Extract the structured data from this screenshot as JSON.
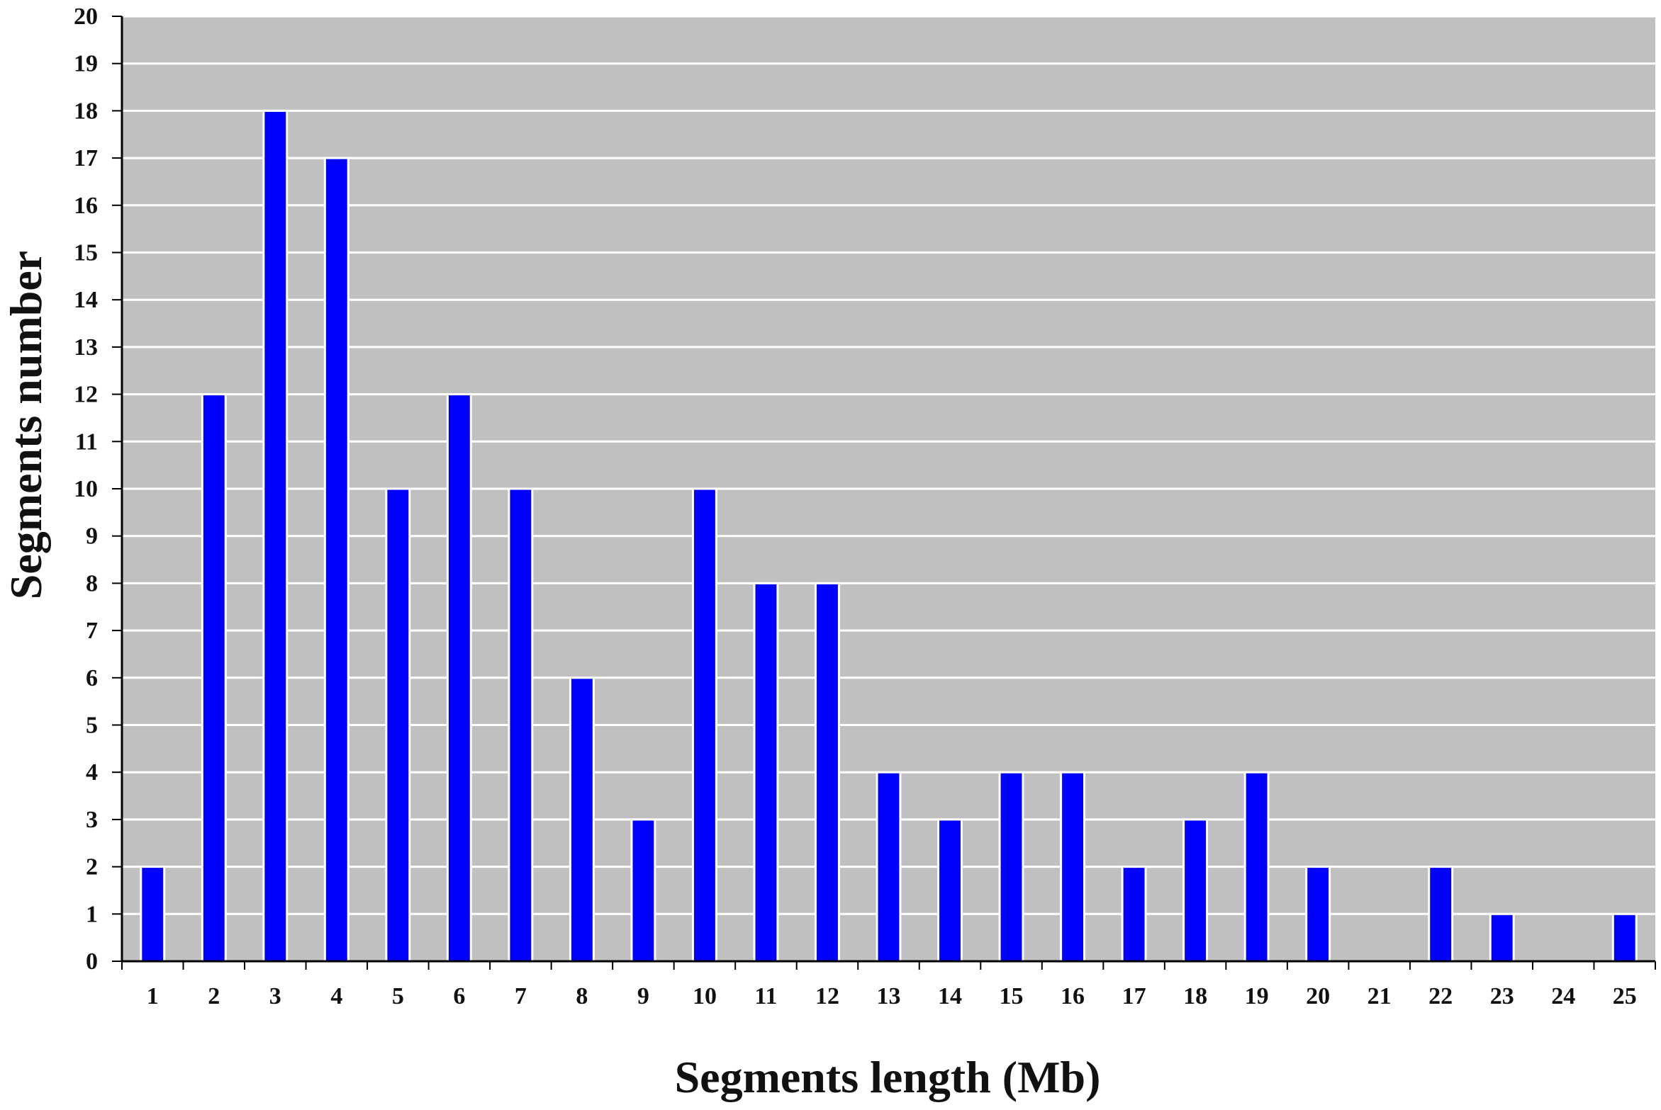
{
  "chart_data": {
    "type": "bar",
    "title": "",
    "xlabel": "Segments length (Mb)",
    "ylabel": "Segments number",
    "categories": [
      "1",
      "2",
      "3",
      "4",
      "5",
      "6",
      "7",
      "8",
      "9",
      "10",
      "11",
      "12",
      "13",
      "14",
      "15",
      "16",
      "17",
      "18",
      "19",
      "20",
      "21",
      "22",
      "23",
      "24",
      "25"
    ],
    "values": [
      2,
      12,
      18,
      17,
      10,
      12,
      10,
      6,
      3,
      10,
      8,
      8,
      4,
      3,
      4,
      4,
      2,
      3,
      4,
      2,
      0,
      2,
      1,
      0,
      1
    ],
    "ylim": [
      0,
      20
    ],
    "yticks": [
      0,
      1,
      2,
      3,
      4,
      5,
      6,
      7,
      8,
      9,
      10,
      11,
      12,
      13,
      14,
      15,
      16,
      17,
      18,
      19,
      20
    ],
    "grid": true,
    "legend": "none",
    "colors": {
      "bar": "#0000ff",
      "bar_edge": "#ffffff",
      "plot_background": "#c0c0c0",
      "gridline": "#ffffff",
      "axis": "#000000"
    }
  }
}
